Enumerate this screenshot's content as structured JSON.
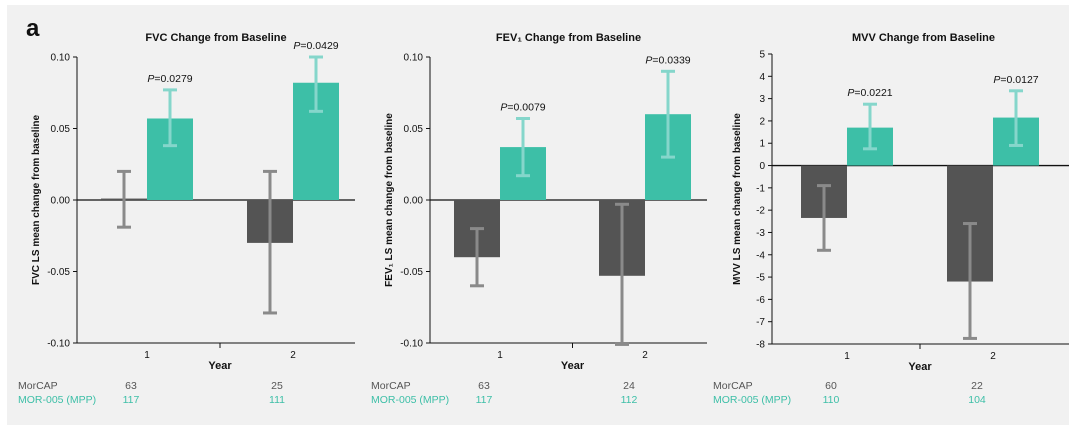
{
  "figure": {
    "panel_label": "a"
  },
  "colors": {
    "morcap": "#545454",
    "mor005": "#3dbfa7",
    "morcap_err": "#8a8a8a",
    "mor005_err": "#85d6cb"
  },
  "chart_data": [
    {
      "type": "bar",
      "title": "FVC Change from Baseline",
      "ylabel": "FVC LS mean change from baseline",
      "xlabel": "Year",
      "categories": [
        "1",
        "2"
      ],
      "ylim": [
        -0.1,
        0.1
      ],
      "yticks": [
        "-0.10",
        "-0.05",
        "0.00",
        "0.05",
        "0.10"
      ],
      "series": [
        {
          "name": "MorCAP",
          "values": [
            0.001,
            -0.03
          ],
          "err_low": [
            -0.019,
            -0.079
          ],
          "err_high": [
            0.02,
            0.02
          ]
        },
        {
          "name": "MOR-005 (MPP)",
          "values": [
            0.057,
            0.082
          ],
          "err_low": [
            0.038,
            0.062
          ],
          "err_high": [
            0.077,
            0.1
          ]
        }
      ],
      "p_values": [
        "0.0279",
        "0.0429"
      ],
      "p_prefix": "P",
      "n_counts": {
        "MorCAP": [
          "63",
          "25"
        ],
        "MOR-005 (MPP)": [
          "117",
          "111"
        ]
      }
    },
    {
      "type": "bar",
      "title": "FEV₁ Change from Baseline",
      "ylabel": "FEV₁ LS mean change from baseline",
      "xlabel": "Year",
      "categories": [
        "1",
        "2"
      ],
      "ylim": [
        -0.1,
        0.1
      ],
      "yticks": [
        "-0.10",
        "-0.05",
        "0.00",
        "0.05",
        "0.10"
      ],
      "series": [
        {
          "name": "MorCAP",
          "values": [
            -0.04,
            -0.053
          ],
          "err_low": [
            -0.06,
            -0.101
          ],
          "err_high": [
            -0.02,
            -0.003
          ]
        },
        {
          "name": "MOR-005 (MPP)",
          "values": [
            0.037,
            0.06
          ],
          "err_low": [
            0.017,
            0.03
          ],
          "err_high": [
            0.057,
            0.09
          ]
        }
      ],
      "p_values": [
        "0.0079",
        "0.0339"
      ],
      "p_prefix": "P",
      "n_counts": {
        "MorCAP": [
          "63",
          "24"
        ],
        "MOR-005 (MPP)": [
          "117",
          "112"
        ]
      }
    },
    {
      "type": "bar",
      "title": "MVV Change from Baseline",
      "ylabel": "MVV LS mean change from baseline",
      "xlabel": "Year",
      "categories": [
        "1",
        "2"
      ],
      "ylim": [
        -8,
        5
      ],
      "yticks": [
        "-8",
        "-7",
        "-6",
        "-5",
        "-4",
        "-3",
        "-2",
        "-1",
        "0",
        "1",
        "2",
        "3",
        "4",
        "5"
      ],
      "series": [
        {
          "name": "MorCAP",
          "values": [
            -2.35,
            -5.2
          ],
          "err_low": [
            -3.8,
            -7.75
          ],
          "err_high": [
            -0.9,
            -2.6
          ]
        },
        {
          "name": "MOR-005 (MPP)",
          "values": [
            1.7,
            2.15
          ],
          "err_low": [
            0.75,
            0.9
          ],
          "err_high": [
            2.75,
            3.35
          ]
        }
      ],
      "p_values": [
        "0.0221",
        "0.0127"
      ],
      "p_prefix": "P",
      "n_counts": {
        "MorCAP": [
          "60",
          "22"
        ],
        "MOR-005 (MPP)": [
          "110",
          "104"
        ]
      }
    }
  ]
}
